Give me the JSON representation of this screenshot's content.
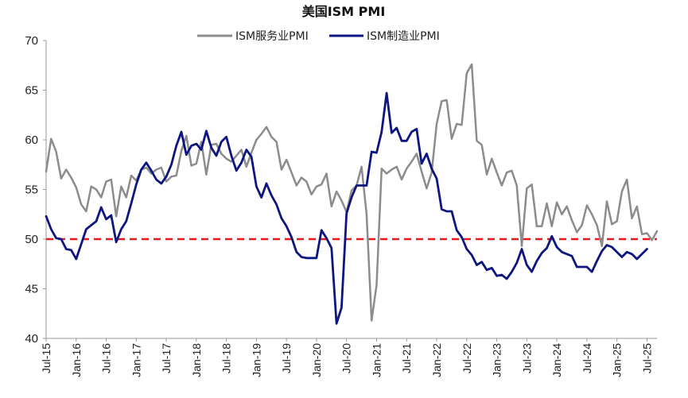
{
  "chart_data": {
    "type": "line",
    "title": "美国ISM PMI",
    "xlabel": "",
    "ylabel": "",
    "ylim": [
      40,
      70
    ],
    "yticks": [
      40,
      45,
      50,
      55,
      60,
      65,
      70
    ],
    "x_tick_labels": [
      "Jul-15",
      "Jan-16",
      "Jul-16",
      "Jan-17",
      "Jul-17",
      "Jan-18",
      "Jul-18",
      "Jan-19",
      "Jul-19",
      "Jan-20",
      "Jul-20",
      "Jan-21",
      "Jul-21",
      "Jan-22",
      "Jul-22",
      "Jan-23",
      "Jul-23",
      "Jan-24",
      "Jul-24",
      "Jan-25",
      "Jul-25"
    ],
    "legend_position": "top-center",
    "grid": false,
    "reference_line": {
      "y": 50,
      "color": "#e41a1c",
      "style": "dashed"
    },
    "series": [
      {
        "name": "ISM服务业PMI",
        "color": "#8c8c8c",
        "values": [
          56.8,
          60.1,
          58.8,
          56.1,
          57.0,
          56.2,
          55.2,
          53.5,
          52.8,
          55.3,
          55.0,
          54.2,
          55.8,
          56.0,
          52.3,
          55.3,
          54.2,
          56.4,
          55.9,
          57.0,
          57.2,
          56.6,
          57.0,
          57.2,
          55.8,
          56.3,
          56.4,
          58.9,
          60.4,
          57.4,
          57.6,
          59.8,
          56.5,
          59.5,
          59.6,
          58.6,
          58.1,
          57.8,
          58.4,
          59.0,
          57.3,
          58.7,
          60.0,
          60.6,
          61.3,
          60.3,
          59.8,
          57.0,
          58.0,
          56.7,
          55.4,
          56.2,
          55.8,
          54.5,
          55.3,
          55.5,
          56.6,
          53.3,
          54.8,
          53.9,
          52.7,
          54.9,
          55.4,
          57.3,
          52.5,
          41.8,
          45.4,
          57.1,
          56.6,
          57.0,
          57.3,
          56.0,
          57.1,
          57.8,
          58.6,
          56.8,
          55.1,
          56.7,
          61.6,
          63.9,
          64.0,
          60.1,
          61.6,
          61.5,
          66.7,
          67.6,
          59.9,
          59.5,
          56.5,
          58.1,
          56.7,
          55.4,
          56.7,
          56.9,
          55.4,
          49.3,
          55.1,
          55.5,
          51.3,
          51.3,
          53.6,
          51.3,
          53.7,
          52.5,
          53.3,
          51.9,
          50.7,
          51.4,
          53.4,
          52.5,
          51.4,
          49.3,
          53.8,
          51.5,
          51.8,
          54.8,
          56.0,
          52.1,
          53.3,
          50.5,
          50.6,
          49.9,
          50.8
        ]
      },
      {
        "name": "ISM制造业PMI",
        "color": "#0d1680",
        "values": [
          52.3,
          51.0,
          50.1,
          50.0,
          49.0,
          48.9,
          48.0,
          49.5,
          51.0,
          51.4,
          51.8,
          53.2,
          52.0,
          52.4,
          49.7,
          51.0,
          51.8,
          53.6,
          55.5,
          57.0,
          57.7,
          56.9,
          56.0,
          55.6,
          56.3,
          57.5,
          59.4,
          60.8,
          58.5,
          59.4,
          59.6,
          59.0,
          60.9,
          59.2,
          58.4,
          59.8,
          60.3,
          58.4,
          56.9,
          57.7,
          59.0,
          58.3,
          55.3,
          54.2,
          55.6,
          54.4,
          53.5,
          52.1,
          51.3,
          50.2,
          48.7,
          48.2,
          48.1,
          48.1,
          48.1,
          50.9,
          50.1,
          49.1,
          41.5,
          43.1,
          52.6,
          54.2,
          55.4,
          55.4,
          55.4,
          58.8,
          58.7,
          60.8,
          64.7,
          60.7,
          61.2,
          59.9,
          59.9,
          60.8,
          61.1,
          57.6,
          58.6,
          57.1,
          56.1,
          53.0,
          52.8,
          52.8,
          50.9,
          50.2,
          49.0,
          48.4,
          47.4,
          47.7,
          46.9,
          47.1,
          46.3,
          46.4,
          46.0,
          46.7,
          47.6,
          49.0,
          47.4,
          46.7,
          47.8,
          48.6,
          49.1,
          50.3,
          49.2,
          48.7,
          48.5,
          48.3,
          47.2,
          47.2,
          47.2,
          46.7,
          47.8,
          48.8,
          49.4,
          49.2,
          48.7,
          48.2,
          48.7,
          48.5,
          48.0,
          48.5,
          49.0
        ]
      }
    ]
  }
}
